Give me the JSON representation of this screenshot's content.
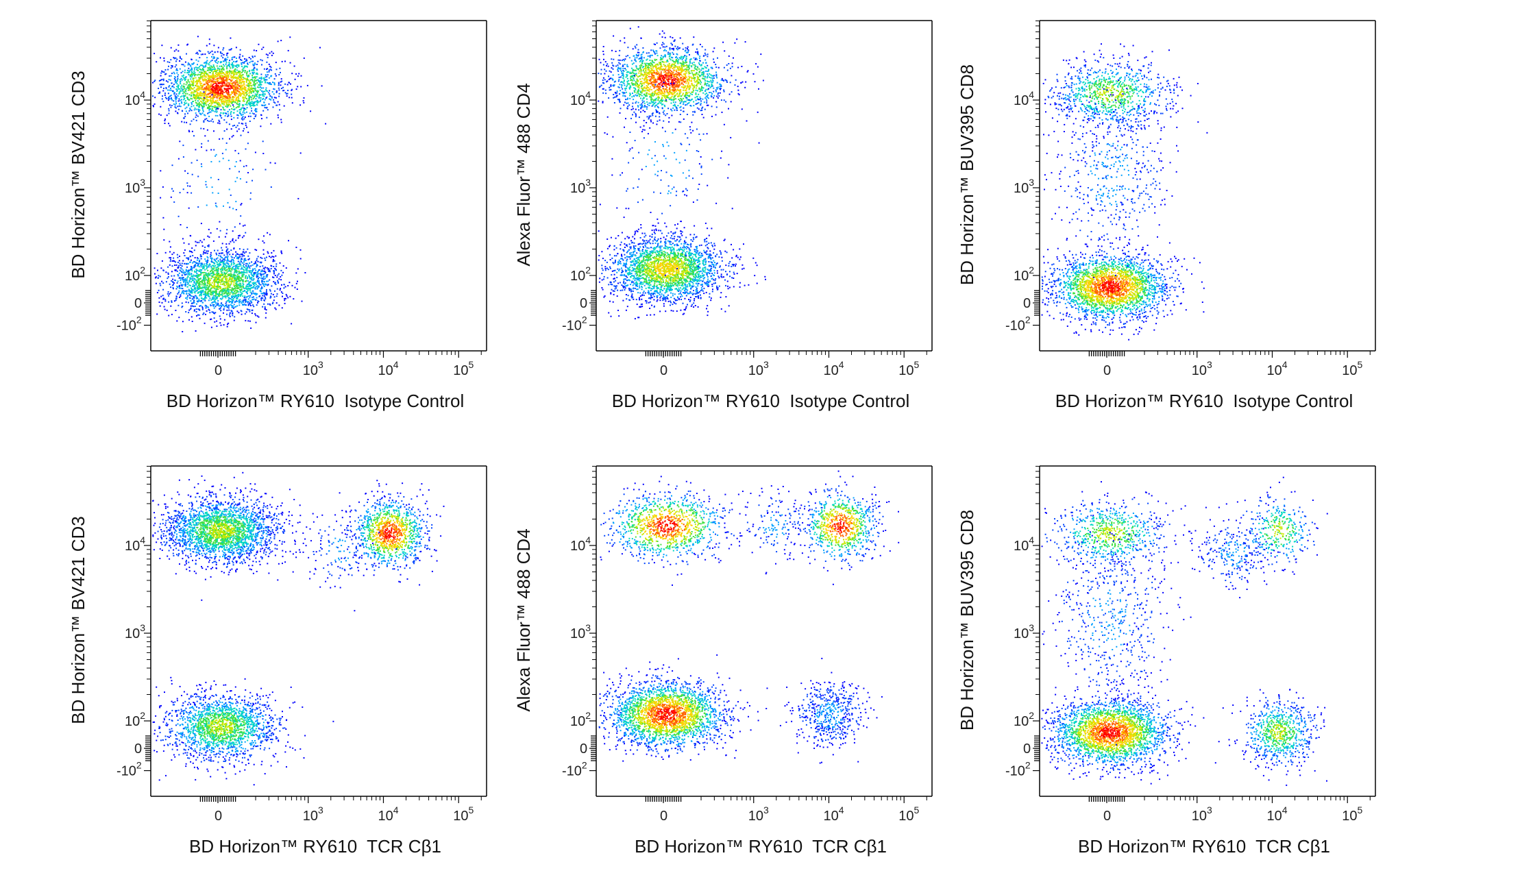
{
  "figure": {
    "panels": [
      {
        "id": "p1",
        "xlabel": "BD Horizon™ RY610  Isotype Control",
        "ylabel": "BD Horizon™ BV421 CD3"
      },
      {
        "id": "p2",
        "xlabel": "BD Horizon™ RY610  Isotype Control",
        "ylabel": "Alexa Fluor™ 488 CD4"
      },
      {
        "id": "p3",
        "xlabel": "BD Horizon™ RY610  Isotype Control",
        "ylabel": "BD Horizon™ BUV395 CD8"
      },
      {
        "id": "p4",
        "xlabel": "BD Horizon™ RY610  TCR Cβ1",
        "ylabel": "BD Horizon™ BV421 CD3"
      },
      {
        "id": "p5",
        "xlabel": "BD Horizon™ RY610  TCR Cβ1",
        "ylabel": "Alexa Fluor™ 488 CD4"
      },
      {
        "id": "p6",
        "xlabel": "BD Horizon™ RY610  TCR Cβ1",
        "ylabel": "BD Horizon™ BUV395 CD8"
      }
    ]
  },
  "chart_data": [
    {
      "type": "scatter",
      "xlabel": "BD Horizon™ RY610  Isotype Control",
      "ylabel": "BD Horizon™ BV421 CD3",
      "scale": "biexponential",
      "x_ticks": [
        "0",
        "10^3",
        "10^4",
        "10^5"
      ],
      "y_ticks": [
        "-10^2",
        "0",
        "10^2",
        "10^3",
        "10^4"
      ],
      "xlim": [
        -300,
        250000
      ],
      "ylim": [
        -300,
        80000
      ],
      "populations": [
        {
          "x": 20,
          "y": 14000,
          "n": 3000,
          "peak": "red"
        },
        {
          "x": 20,
          "y": 80,
          "n": 2200,
          "peak": "green"
        },
        {
          "x": 20,
          "y": 1200,
          "n": 150,
          "peak": "blue"
        }
      ]
    },
    {
      "type": "scatter",
      "xlabel": "BD Horizon™ RY610  Isotype Control",
      "ylabel": "Alexa Fluor™ 488 CD4",
      "scale": "biexponential",
      "x_ticks": [
        "0",
        "10^3",
        "10^4",
        "10^5"
      ],
      "y_ticks": [
        "-10^2",
        "0",
        "10^2",
        "10^3",
        "10^4"
      ],
      "xlim": [
        -300,
        250000
      ],
      "ylim": [
        -300,
        80000
      ],
      "populations": [
        {
          "x": 20,
          "y": 17000,
          "n": 2000,
          "peak": "red"
        },
        {
          "x": 20,
          "y": 120,
          "n": 3200,
          "peak": "yellow"
        },
        {
          "x": 30,
          "y": 2000,
          "n": 160,
          "peak": "blue"
        }
      ]
    },
    {
      "type": "scatter",
      "xlabel": "BD Horizon™ RY610  Isotype Control",
      "ylabel": "BD Horizon™ BUV395 CD8",
      "scale": "biexponential",
      "x_ticks": [
        "0",
        "10^3",
        "10^4",
        "10^5"
      ],
      "y_ticks": [
        "-10^2",
        "0",
        "10^2",
        "10^3",
        "10^4"
      ],
      "xlim": [
        -300,
        250000
      ],
      "ylim": [
        -300,
        80000
      ],
      "populations": [
        {
          "x": 20,
          "y": 60,
          "n": 3600,
          "peak": "red"
        },
        {
          "x": 20,
          "y": 12000,
          "n": 900,
          "peak": "green"
        },
        {
          "x": 20,
          "y": 1500,
          "n": 500,
          "peak": "blue"
        }
      ]
    },
    {
      "type": "scatter",
      "xlabel": "BD Horizon™ RY610  TCR Cβ1",
      "ylabel": "BD Horizon™ BV421 CD3",
      "scale": "biexponential",
      "x_ticks": [
        "0",
        "10^3",
        "10^4",
        "10^5"
      ],
      "y_ticks": [
        "-10^2",
        "0",
        "10^2",
        "10^3",
        "10^4"
      ],
      "xlim": [
        -300,
        250000
      ],
      "ylim": [
        -300,
        80000
      ],
      "populations": [
        {
          "x": 20,
          "y": 15000,
          "n": 2400,
          "peak": "green"
        },
        {
          "x": 12000,
          "y": 14000,
          "n": 1100,
          "peak": "red"
        },
        {
          "x": 20,
          "y": 80,
          "n": 1800,
          "peak": "green"
        },
        {
          "x": 2500,
          "y": 9000,
          "n": 120,
          "peak": "blue"
        }
      ]
    },
    {
      "type": "scatter",
      "xlabel": "BD Horizon™ RY610  TCR Cβ1",
      "ylabel": "Alexa Fluor™ 488 CD4",
      "scale": "biexponential",
      "x_ticks": [
        "0",
        "10^3",
        "10^4",
        "10^5"
      ],
      "y_ticks": [
        "-10^2",
        "0",
        "10^2",
        "10^3",
        "10^4"
      ],
      "xlim": [
        -300,
        250000
      ],
      "ylim": [
        -300,
        80000
      ],
      "populations": [
        {
          "x": 20,
          "y": 17000,
          "n": 1100,
          "peak": "red"
        },
        {
          "x": 14000,
          "y": 17000,
          "n": 800,
          "peak": "red"
        },
        {
          "x": 20,
          "y": 120,
          "n": 3000,
          "peak": "red"
        },
        {
          "x": 10000,
          "y": 120,
          "n": 500,
          "peak": "blue"
        },
        {
          "x": 2000,
          "y": 17000,
          "n": 150,
          "peak": "blue"
        }
      ]
    },
    {
      "type": "scatter",
      "xlabel": "BD Horizon™ RY610  TCR Cβ1",
      "ylabel": "BD Horizon™ BUV395 CD8",
      "scale": "biexponential",
      "x_ticks": [
        "0",
        "10^3",
        "10^4",
        "10^5"
      ],
      "y_ticks": [
        "-10^2",
        "0",
        "10^2",
        "10^3",
        "10^4"
      ],
      "xlim": [
        -300,
        250000
      ],
      "ylim": [
        -300,
        80000
      ],
      "populations": [
        {
          "x": 20,
          "y": 60,
          "n": 3000,
          "peak": "red"
        },
        {
          "x": 20,
          "y": 14000,
          "n": 700,
          "peak": "green"
        },
        {
          "x": 12000,
          "y": 60,
          "n": 700,
          "peak": "green"
        },
        {
          "x": 12000,
          "y": 15000,
          "n": 350,
          "peak": "green"
        },
        {
          "x": 20,
          "y": 1500,
          "n": 500,
          "peak": "blue"
        },
        {
          "x": 3000,
          "y": 8000,
          "n": 250,
          "peak": "blue"
        }
      ]
    }
  ]
}
